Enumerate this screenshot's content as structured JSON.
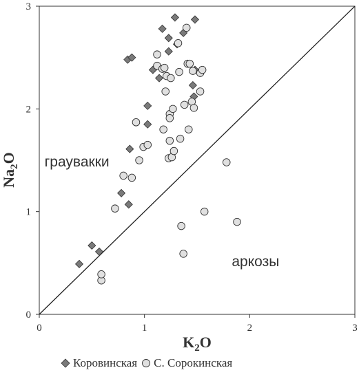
{
  "chart_data": {
    "type": "scatter",
    "title": "",
    "xlabel": "K",
    "xlabel_sub": "2",
    "xlabel_suffix": "O",
    "ylabel": "Na",
    "ylabel_sub": "2",
    "ylabel_suffix": "O",
    "xlim": [
      0,
      3
    ],
    "ylim": [
      0,
      3
    ],
    "x_ticks": [
      "0",
      "1",
      "2",
      "3"
    ],
    "y_ticks": [
      "0",
      "1",
      "2",
      "3"
    ],
    "grid": false,
    "legend_position": "bottom",
    "reference_line": {
      "from": [
        0,
        0
      ],
      "to": [
        3,
        3
      ]
    },
    "annotations": [
      {
        "text": "граувакки",
        "x": 0.05,
        "y": 1.44
      },
      {
        "text": "аркозы",
        "x": 1.83,
        "y": 0.47
      }
    ],
    "series": [
      {
        "name": "Коровинская",
        "marker": "diamond",
        "color": "#7a7a7a",
        "points": [
          [
            0.38,
            0.49
          ],
          [
            0.5,
            0.67
          ],
          [
            0.57,
            0.61
          ],
          [
            0.78,
            1.18
          ],
          [
            0.85,
            1.07
          ],
          [
            0.86,
            1.61
          ],
          [
            0.84,
            2.48
          ],
          [
            0.88,
            2.5
          ],
          [
            1.03,
            1.85
          ],
          [
            1.03,
            2.03
          ],
          [
            1.08,
            2.38
          ],
          [
            1.14,
            2.3
          ],
          [
            1.17,
            2.78
          ],
          [
            1.23,
            2.56
          ],
          [
            1.23,
            2.69
          ],
          [
            1.29,
            2.89
          ],
          [
            1.31,
            2.63
          ],
          [
            1.37,
            2.74
          ],
          [
            1.46,
            2.23
          ],
          [
            1.47,
            2.12
          ],
          [
            1.48,
            2.38
          ],
          [
            1.48,
            2.87
          ]
        ]
      },
      {
        "name": "С. Сорокинская",
        "marker": "circle",
        "color": "#e0e0e0",
        "points": [
          [
            0.59,
            0.33
          ],
          [
            0.59,
            0.39
          ],
          [
            0.72,
            1.03
          ],
          [
            0.8,
            1.35
          ],
          [
            0.88,
            1.33
          ],
          [
            0.92,
            1.87
          ],
          [
            0.95,
            1.5
          ],
          [
            0.99,
            1.63
          ],
          [
            1.03,
            1.65
          ],
          [
            1.12,
            2.42
          ],
          [
            1.12,
            2.53
          ],
          [
            1.17,
            2.39
          ],
          [
            1.18,
            1.8
          ],
          [
            1.19,
            2.4
          ],
          [
            1.2,
            2.17
          ],
          [
            1.21,
            2.32
          ],
          [
            1.23,
            1.52
          ],
          [
            1.24,
            1.95
          ],
          [
            1.24,
            1.91
          ],
          [
            1.24,
            1.69
          ],
          [
            1.25,
            2.3
          ],
          [
            1.26,
            1.53
          ],
          [
            1.27,
            2.0
          ],
          [
            1.28,
            1.59
          ],
          [
            1.32,
            2.64
          ],
          [
            1.33,
            2.36
          ],
          [
            1.34,
            1.71
          ],
          [
            1.35,
            0.86
          ],
          [
            1.37,
            0.59
          ],
          [
            1.38,
            2.04
          ],
          [
            1.4,
            2.79
          ],
          [
            1.41,
            2.44
          ],
          [
            1.42,
            1.8
          ],
          [
            1.43,
            2.44
          ],
          [
            1.45,
            2.07
          ],
          [
            1.46,
            2.37
          ],
          [
            1.47,
            2.01
          ],
          [
            1.53,
            2.17
          ],
          [
            1.53,
            2.35
          ],
          [
            1.55,
            2.38
          ],
          [
            1.57,
            1.0
          ],
          [
            1.78,
            1.48
          ],
          [
            1.88,
            0.9
          ]
        ]
      }
    ]
  }
}
